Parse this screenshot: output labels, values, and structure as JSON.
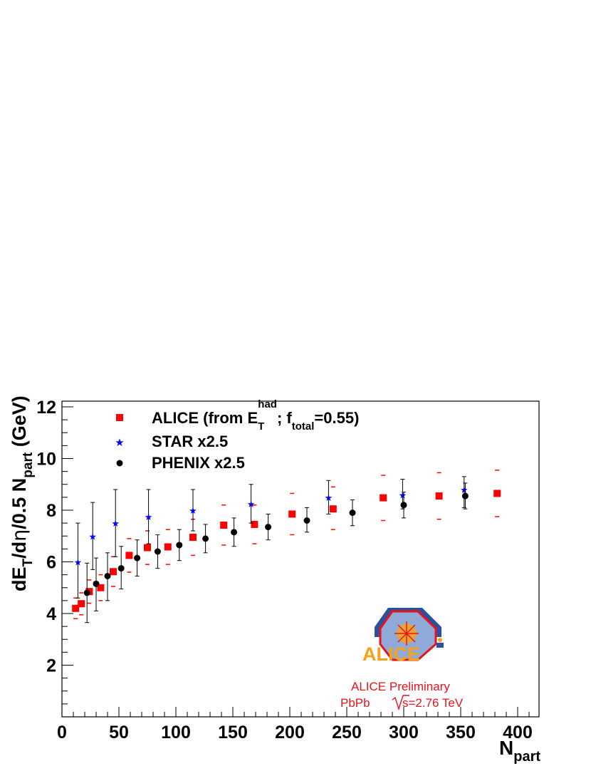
{
  "chart_data": {
    "type": "scatter",
    "xlabel": "N",
    "xlabel_sub": "part",
    "ylabel": {
      "p1": "dE",
      "s1": "T",
      "p2": "/d",
      "eta": "η",
      "p3": "/0.5 N",
      "s2": "part",
      "p4": " (GeV)"
    },
    "xlim": [
      0,
      420
    ],
    "ylim": [
      0,
      12.5
    ],
    "xticks": [
      0,
      50,
      100,
      150,
      200,
      250,
      300,
      350,
      400
    ],
    "yticks": [
      2,
      4,
      6,
      8,
      10,
      12
    ],
    "grid": false,
    "legend_position": "top-left",
    "series": [
      {
        "name": "ALICE (from E_T^had; f_total=0.55)",
        "legend": {
          "p1": "ALICE (from E",
          "sub": "T",
          "sup": "had",
          "p2": "; f",
          "sub2": "total",
          "p3": "=0.55)"
        },
        "marker": "square",
        "color": "#ff0000",
        "x": [
          12,
          17,
          24,
          34,
          45,
          59,
          75,
          93,
          115,
          142,
          169,
          202,
          238,
          282,
          331,
          382
        ],
        "y": [
          4.2,
          4.38,
          4.85,
          5.0,
          5.62,
          6.25,
          6.55,
          6.58,
          6.95,
          7.42,
          7.45,
          7.85,
          8.05,
          8.48,
          8.55,
          8.65
        ],
        "syst_low": [
          3.8,
          3.95,
          4.4,
          4.5,
          5.05,
          5.6,
          5.9,
          5.9,
          6.25,
          6.65,
          6.7,
          7.05,
          7.25,
          7.6,
          7.65,
          7.75
        ],
        "syst_high": [
          4.6,
          4.8,
          5.3,
          5.5,
          6.2,
          6.9,
          7.2,
          7.25,
          7.65,
          8.2,
          8.2,
          8.65,
          8.9,
          9.35,
          9.45,
          9.55
        ]
      },
      {
        "name": "STAR x2.5",
        "marker": "star",
        "color": "#0000ff",
        "x": [
          14,
          27,
          47,
          76,
          115,
          166,
          234,
          299,
          353
        ],
        "y": [
          6.0,
          7.0,
          7.5,
          7.75,
          8.0,
          8.25,
          8.5,
          8.6,
          8.8
        ],
        "yerr_low": [
          4.6,
          5.7,
          6.2,
          6.7,
          7.2,
          7.5,
          7.85,
          8.05,
          8.1
        ],
        "yerr_high": [
          7.5,
          8.3,
          8.8,
          8.8,
          8.8,
          9.0,
          9.15,
          9.2,
          9.3
        ]
      },
      {
        "name": "PHENIX x2.5",
        "marker": "circle",
        "color": "#000000",
        "x": [
          22,
          30,
          40,
          52,
          66,
          84,
          103,
          126,
          151,
          181,
          215,
          255,
          300,
          354
        ],
        "y": [
          4.8,
          5.15,
          5.45,
          5.75,
          6.15,
          6.4,
          6.65,
          6.9,
          7.15,
          7.35,
          7.6,
          7.9,
          8.2,
          8.55
        ],
        "yerr_low": [
          3.65,
          4.1,
          4.5,
          4.95,
          5.45,
          5.75,
          6.05,
          6.35,
          6.6,
          6.85,
          7.15,
          7.4,
          7.7,
          8.05
        ],
        "yerr_high": [
          5.95,
          6.15,
          6.35,
          6.6,
          6.85,
          7.05,
          7.25,
          7.45,
          7.7,
          7.85,
          8.1,
          8.4,
          8.7,
          9.05
        ]
      }
    ]
  },
  "annotations": {
    "preliminary": "ALICE Preliminary",
    "system": "PbPb",
    "energy": "s=2.76 TeV",
    "logo_text": "ALICE"
  },
  "colors": {
    "alice_red": "#ff0000",
    "star_blue": "#0000ff",
    "phenix_black": "#000000",
    "annotation_red": "#e8141b",
    "logo_blue": "#2c4f9e",
    "logo_orange": "#f6a21b"
  }
}
